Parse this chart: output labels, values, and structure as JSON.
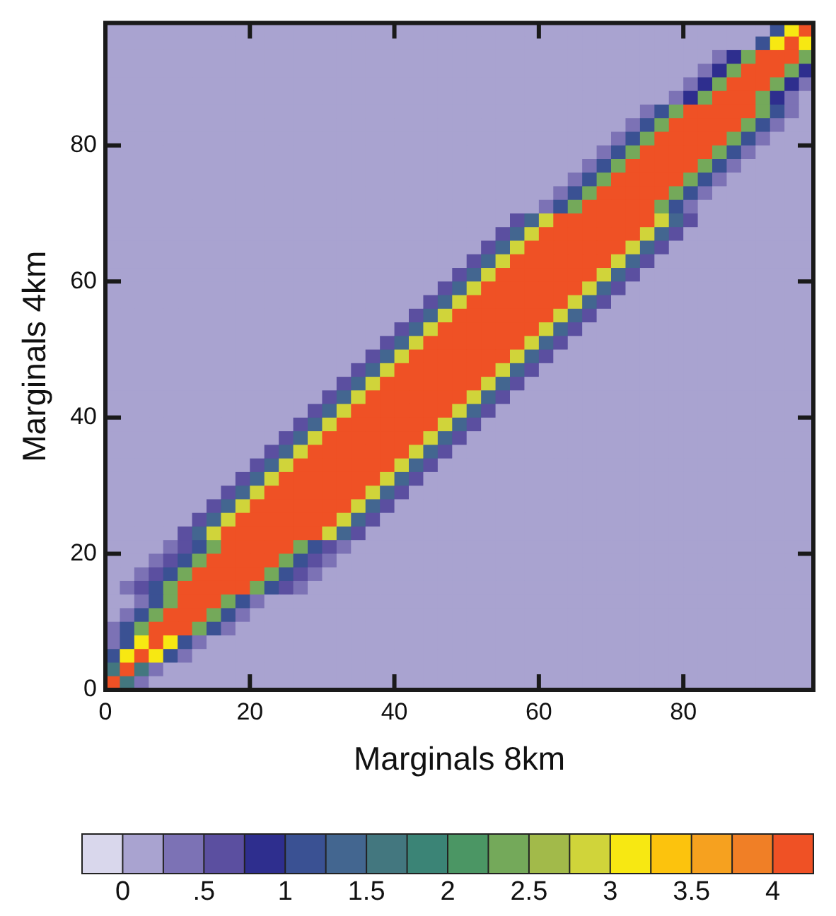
{
  "chart_data": {
    "type": "heatmap",
    "xlabel": "Marginals 8km",
    "ylabel": "Marginals 4km",
    "x": [
      1,
      3,
      5,
      7,
      9,
      11,
      13,
      15,
      17,
      19,
      21,
      23,
      25,
      27,
      29,
      31,
      33,
      35,
      37,
      39,
      41,
      43,
      45,
      47,
      49,
      51,
      53,
      55,
      57,
      59,
      61,
      63,
      65,
      67,
      69,
      71,
      73,
      75,
      77,
      79,
      81,
      83,
      85,
      87,
      89,
      91,
      93,
      95,
      97
    ],
    "y": [
      97,
      95,
      93,
      91,
      89,
      87,
      85,
      83,
      81,
      79,
      77,
      75,
      73,
      71,
      69,
      67,
      65,
      63,
      61,
      59,
      57,
      55,
      53,
      51,
      49,
      47,
      45,
      43,
      41,
      39,
      37,
      35,
      33,
      31,
      29,
      27,
      25,
      23,
      21,
      19,
      17,
      15,
      13,
      11,
      9,
      7,
      5,
      3,
      1
    ],
    "xlim": [
      0,
      98
    ],
    "ylim": [
      0,
      98
    ],
    "xticks": [
      0,
      20,
      40,
      60,
      80
    ],
    "yticks": [
      0,
      20,
      40,
      60,
      80
    ],
    "clim": [
      -0.25,
      4.25
    ],
    "cticks": [
      0,
      {
        "value": 0.5,
        "label": ".5"
      },
      1,
      1.5,
      2,
      2.5,
      3,
      3.5,
      4
    ],
    "colors": [
      "#d9d7ec",
      "#a9a3d0",
      "#7c72b5",
      "#5b4fa0",
      "#2e2e8e",
      "#3a5193",
      "#436690",
      "#43777f",
      "#3b8476",
      "#4b9664",
      "#74a95a",
      "#a2ba4a",
      "#d0d43a",
      "#f7e812",
      "#fcc30d",
      "#f6a11f",
      "#f07f26",
      "#ef5125"
    ],
    "cells": [
      [
        0.1,
        0.1,
        0.1,
        0.1,
        0.1,
        0.1,
        0.1,
        0.1,
        0.1,
        0.1,
        0.1,
        0.1,
        0.1,
        0.1,
        0.1,
        0.1,
        0.1,
        0.1,
        0.1,
        0.1,
        0.1,
        0.1,
        0.1,
        0.1,
        0.1,
        0.1,
        0.1,
        0.1,
        0.1,
        0.1,
        0.1,
        0.1,
        0.1,
        0.1,
        0.1,
        0.1,
        0.1,
        0.1,
        0.1,
        0.1,
        0.1,
        0.1,
        0.1,
        0.1,
        0.1,
        0.1,
        1.1,
        3.1,
        4.2
      ],
      [
        0.1,
        0.1,
        0.1,
        0.1,
        0.1,
        0.1,
        0.1,
        0.1,
        0.1,
        0.1,
        0.1,
        0.1,
        0.1,
        0.1,
        0.1,
        0.1,
        0.1,
        0.1,
        0.1,
        0.1,
        0.1,
        0.1,
        0.1,
        0.1,
        0.1,
        0.1,
        0.1,
        0.1,
        0.1,
        0.1,
        0.1,
        0.1,
        0.1,
        0.1,
        0.1,
        0.1,
        0.1,
        0.1,
        0.1,
        0.1,
        0.1,
        0.1,
        0.1,
        0.1,
        0.1,
        1.1,
        3.1,
        4.2,
        3.1
      ],
      [
        0.1,
        0.1,
        0.1,
        0.1,
        0.1,
        0.1,
        0.1,
        0.1,
        0.1,
        0.1,
        0.1,
        0.1,
        0.1,
        0.1,
        0.1,
        0.1,
        0.1,
        0.1,
        0.1,
        0.1,
        0.1,
        0.1,
        0.1,
        0.1,
        0.1,
        0.1,
        0.1,
        0.1,
        0.1,
        0.1,
        0.1,
        0.1,
        0.1,
        0.1,
        0.1,
        0.1,
        0.1,
        0.1,
        0.1,
        0.1,
        0.1,
        0.1,
        0.4,
        0.9,
        2.4,
        4.2,
        4.2,
        4.2,
        2.4
      ],
      [
        0.1,
        0.1,
        0.1,
        0.1,
        0.1,
        0.1,
        0.1,
        0.1,
        0.1,
        0.1,
        0.1,
        0.1,
        0.1,
        0.1,
        0.1,
        0.1,
        0.1,
        0.1,
        0.1,
        0.1,
        0.1,
        0.1,
        0.1,
        0.1,
        0.1,
        0.1,
        0.1,
        0.1,
        0.1,
        0.1,
        0.1,
        0.1,
        0.1,
        0.1,
        0.1,
        0.1,
        0.1,
        0.1,
        0.1,
        0.1,
        0.1,
        0.4,
        0.9,
        2.4,
        4.2,
        4.2,
        4.2,
        2.4,
        0.9
      ],
      [
        0.1,
        0.1,
        0.1,
        0.1,
        0.1,
        0.1,
        0.1,
        0.1,
        0.1,
        0.1,
        0.1,
        0.1,
        0.1,
        0.1,
        0.1,
        0.1,
        0.1,
        0.1,
        0.1,
        0.1,
        0.1,
        0.1,
        0.1,
        0.1,
        0.1,
        0.1,
        0.1,
        0.1,
        0.1,
        0.1,
        0.1,
        0.1,
        0.1,
        0.1,
        0.1,
        0.1,
        0.1,
        0.1,
        0.1,
        0.1,
        0.4,
        0.9,
        2.4,
        4.2,
        4.2,
        4.2,
        2.4,
        0.9,
        0.4
      ],
      [
        0.1,
        0.1,
        0.1,
        0.1,
        0.1,
        0.1,
        0.1,
        0.1,
        0.1,
        0.1,
        0.1,
        0.1,
        0.1,
        0.1,
        0.1,
        0.1,
        0.1,
        0.1,
        0.1,
        0.1,
        0.1,
        0.1,
        0.1,
        0.1,
        0.1,
        0.1,
        0.1,
        0.1,
        0.1,
        0.1,
        0.1,
        0.1,
        0.1,
        0.1,
        0.1,
        0.1,
        0.1,
        0.1,
        0.1,
        0.4,
        0.9,
        2.4,
        4.2,
        4.2,
        4.2,
        2.4,
        0.9,
        0.4,
        0.1
      ],
      [
        0.1,
        0.1,
        0.1,
        0.1,
        0.1,
        0.1,
        0.1,
        0.1,
        0.1,
        0.1,
        0.1,
        0.1,
        0.1,
        0.1,
        0.1,
        0.1,
        0.1,
        0.1,
        0.1,
        0.1,
        0.1,
        0.1,
        0.1,
        0.1,
        0.1,
        0.1,
        0.1,
        0.1,
        0.1,
        0.1,
        0.1,
        0.1,
        0.1,
        0.1,
        0.1,
        0.1,
        0.1,
        0.4,
        1.1,
        2.4,
        4.2,
        4.2,
        4.2,
        4.2,
        4.2,
        2.4,
        1.1,
        0.4,
        0.1
      ],
      [
        0.1,
        0.1,
        0.1,
        0.1,
        0.1,
        0.1,
        0.1,
        0.1,
        0.1,
        0.1,
        0.1,
        0.1,
        0.1,
        0.1,
        0.1,
        0.1,
        0.1,
        0.1,
        0.1,
        0.1,
        0.1,
        0.1,
        0.1,
        0.1,
        0.1,
        0.1,
        0.1,
        0.1,
        0.1,
        0.1,
        0.1,
        0.1,
        0.1,
        0.1,
        0.1,
        0.1,
        0.4,
        1.1,
        2.4,
        4.2,
        4.2,
        4.2,
        4.2,
        4.2,
        2.4,
        1.1,
        0.4,
        0.1,
        0.1
      ],
      [
        0.1,
        0.1,
        0.1,
        0.1,
        0.1,
        0.1,
        0.1,
        0.1,
        0.1,
        0.1,
        0.1,
        0.1,
        0.1,
        0.1,
        0.1,
        0.1,
        0.1,
        0.1,
        0.1,
        0.1,
        0.1,
        0.1,
        0.1,
        0.1,
        0.1,
        0.1,
        0.1,
        0.1,
        0.1,
        0.1,
        0.1,
        0.1,
        0.1,
        0.1,
        0.1,
        0.4,
        1.1,
        2.4,
        4.2,
        4.2,
        4.2,
        4.2,
        4.2,
        2.4,
        1.1,
        0.4,
        0.1,
        0.1,
        0.1
      ],
      [
        0.1,
        0.1,
        0.1,
        0.1,
        0.1,
        0.1,
        0.1,
        0.1,
        0.1,
        0.1,
        0.1,
        0.1,
        0.1,
        0.1,
        0.1,
        0.1,
        0.1,
        0.1,
        0.1,
        0.1,
        0.1,
        0.1,
        0.1,
        0.1,
        0.1,
        0.1,
        0.1,
        0.1,
        0.1,
        0.1,
        0.1,
        0.1,
        0.1,
        0.1,
        0.4,
        1.1,
        2.4,
        4.2,
        4.2,
        4.2,
        4.2,
        4.2,
        2.4,
        1.1,
        0.4,
        0.1,
        0.1,
        0.1,
        0.1
      ],
      [
        0.1,
        0.1,
        0.1,
        0.1,
        0.1,
        0.1,
        0.1,
        0.1,
        0.1,
        0.1,
        0.1,
        0.1,
        0.1,
        0.1,
        0.1,
        0.1,
        0.1,
        0.1,
        0.1,
        0.1,
        0.1,
        0.1,
        0.1,
        0.1,
        0.1,
        0.1,
        0.1,
        0.1,
        0.1,
        0.1,
        0.1,
        0.1,
        0.1,
        0.4,
        1.1,
        2.4,
        4.2,
        4.2,
        4.2,
        4.2,
        4.2,
        2.4,
        1.1,
        0.4,
        0.1,
        0.1,
        0.1,
        0.1,
        0.1
      ],
      [
        0.1,
        0.1,
        0.1,
        0.1,
        0.1,
        0.1,
        0.1,
        0.1,
        0.1,
        0.1,
        0.1,
        0.1,
        0.1,
        0.1,
        0.1,
        0.1,
        0.1,
        0.1,
        0.1,
        0.1,
        0.1,
        0.1,
        0.1,
        0.1,
        0.1,
        0.1,
        0.1,
        0.1,
        0.1,
        0.1,
        0.1,
        0.1,
        0.4,
        1.1,
        2.4,
        4.2,
        4.2,
        4.2,
        4.2,
        4.2,
        2.4,
        1.1,
        0.4,
        0.1,
        0.1,
        0.1,
        0.1,
        0.1,
        0.1
      ],
      [
        0.1,
        0.1,
        0.1,
        0.1,
        0.1,
        0.1,
        0.1,
        0.1,
        0.1,
        0.1,
        0.1,
        0.1,
        0.1,
        0.1,
        0.1,
        0.1,
        0.1,
        0.1,
        0.1,
        0.1,
        0.1,
        0.1,
        0.1,
        0.1,
        0.1,
        0.1,
        0.1,
        0.1,
        0.1,
        0.1,
        0.1,
        0.4,
        1.1,
        2.4,
        4.2,
        4.2,
        4.2,
        4.2,
        4.2,
        2.4,
        1.1,
        0.4,
        0.1,
        0.1,
        0.1,
        0.1,
        0.1,
        0.1,
        0.1
      ],
      [
        0.1,
        0.1,
        0.1,
        0.1,
        0.1,
        0.1,
        0.1,
        0.1,
        0.1,
        0.1,
        0.1,
        0.1,
        0.1,
        0.1,
        0.1,
        0.1,
        0.1,
        0.1,
        0.1,
        0.1,
        0.1,
        0.1,
        0.1,
        0.1,
        0.1,
        0.1,
        0.1,
        0.1,
        0.1,
        0.1,
        0.4,
        1.1,
        2.4,
        4.2,
        4.2,
        4.2,
        4.2,
        4.2,
        2.4,
        1.1,
        0.4,
        0.1,
        0.1,
        0.1,
        0.1,
        0.1,
        0.1,
        0.1,
        0.1
      ],
      [
        0.1,
        0.1,
        0.1,
        0.1,
        0.1,
        0.1,
        0.1,
        0.1,
        0.1,
        0.1,
        0.1,
        0.1,
        0.1,
        0.1,
        0.1,
        0.1,
        0.1,
        0.1,
        0.1,
        0.1,
        0.1,
        0.1,
        0.1,
        0.1,
        0.1,
        0.1,
        0.1,
        0.1,
        0.6,
        1.4,
        2.9,
        4.2,
        4.2,
        4.2,
        4.2,
        4.2,
        4.2,
        4.2,
        2.9,
        1.4,
        0.6,
        0.1,
        0.1,
        0.1,
        0.1,
        0.1,
        0.1,
        0.1,
        0.1
      ],
      [
        0.1,
        0.1,
        0.1,
        0.1,
        0.1,
        0.1,
        0.1,
        0.1,
        0.1,
        0.1,
        0.1,
        0.1,
        0.1,
        0.1,
        0.1,
        0.1,
        0.1,
        0.1,
        0.1,
        0.1,
        0.1,
        0.1,
        0.1,
        0.1,
        0.1,
        0.1,
        0.1,
        0.6,
        1.4,
        2.9,
        4.2,
        4.2,
        4.2,
        4.2,
        4.2,
        4.2,
        4.2,
        2.9,
        1.4,
        0.6,
        0.1,
        0.1,
        0.1,
        0.1,
        0.1,
        0.1,
        0.1,
        0.1,
        0.1
      ],
      [
        0.1,
        0.1,
        0.1,
        0.1,
        0.1,
        0.1,
        0.1,
        0.1,
        0.1,
        0.1,
        0.1,
        0.1,
        0.1,
        0.1,
        0.1,
        0.1,
        0.1,
        0.1,
        0.1,
        0.1,
        0.1,
        0.1,
        0.1,
        0.1,
        0.1,
        0.1,
        0.6,
        1.4,
        2.9,
        4.2,
        4.2,
        4.2,
        4.2,
        4.2,
        4.2,
        4.2,
        2.9,
        1.4,
        0.6,
        0.1,
        0.1,
        0.1,
        0.1,
        0.1,
        0.1,
        0.1,
        0.1,
        0.1,
        0.1
      ],
      [
        0.1,
        0.1,
        0.1,
        0.1,
        0.1,
        0.1,
        0.1,
        0.1,
        0.1,
        0.1,
        0.1,
        0.1,
        0.1,
        0.1,
        0.1,
        0.1,
        0.1,
        0.1,
        0.1,
        0.1,
        0.1,
        0.1,
        0.1,
        0.1,
        0.1,
        0.6,
        1.4,
        2.9,
        4.2,
        4.2,
        4.2,
        4.2,
        4.2,
        4.2,
        4.2,
        2.9,
        1.4,
        0.6,
        0.1,
        0.1,
        0.1,
        0.1,
        0.1,
        0.1,
        0.1,
        0.1,
        0.1,
        0.1,
        0.1
      ],
      [
        0.1,
        0.1,
        0.1,
        0.1,
        0.1,
        0.1,
        0.1,
        0.1,
        0.1,
        0.1,
        0.1,
        0.1,
        0.1,
        0.1,
        0.1,
        0.1,
        0.1,
        0.1,
        0.1,
        0.1,
        0.1,
        0.1,
        0.1,
        0.1,
        0.6,
        1.4,
        2.9,
        4.2,
        4.2,
        4.2,
        4.2,
        4.2,
        4.2,
        4.2,
        2.9,
        1.4,
        0.6,
        0.1,
        0.1,
        0.1,
        0.1,
        0.1,
        0.1,
        0.1,
        0.1,
        0.1,
        0.1,
        0.1,
        0.1
      ],
      [
        0.1,
        0.1,
        0.1,
        0.1,
        0.1,
        0.1,
        0.1,
        0.1,
        0.1,
        0.1,
        0.1,
        0.1,
        0.1,
        0.1,
        0.1,
        0.1,
        0.1,
        0.1,
        0.1,
        0.1,
        0.1,
        0.1,
        0.1,
        0.6,
        1.4,
        2.9,
        4.2,
        4.2,
        4.2,
        4.2,
        4.2,
        4.2,
        4.2,
        2.9,
        1.4,
        0.6,
        0.1,
        0.1,
        0.1,
        0.1,
        0.1,
        0.1,
        0.1,
        0.1,
        0.1,
        0.1,
        0.1,
        0.1,
        0.1
      ],
      [
        0.1,
        0.1,
        0.1,
        0.1,
        0.1,
        0.1,
        0.1,
        0.1,
        0.1,
        0.1,
        0.1,
        0.1,
        0.1,
        0.1,
        0.1,
        0.1,
        0.1,
        0.1,
        0.1,
        0.1,
        0.1,
        0.1,
        0.6,
        1.4,
        2.9,
        4.2,
        4.2,
        4.2,
        4.2,
        4.2,
        4.2,
        4.2,
        2.9,
        1.4,
        0.6,
        0.1,
        0.1,
        0.1,
        0.1,
        0.1,
        0.1,
        0.1,
        0.1,
        0.1,
        0.1,
        0.1,
        0.1,
        0.1,
        0.1
      ],
      [
        0.1,
        0.1,
        0.1,
        0.1,
        0.1,
        0.1,
        0.1,
        0.1,
        0.1,
        0.1,
        0.1,
        0.1,
        0.1,
        0.1,
        0.1,
        0.1,
        0.1,
        0.1,
        0.1,
        0.1,
        0.1,
        0.6,
        1.4,
        2.9,
        4.2,
        4.2,
        4.2,
        4.2,
        4.2,
        4.2,
        4.2,
        2.9,
        1.4,
        0.6,
        0.1,
        0.1,
        0.1,
        0.1,
        0.1,
        0.1,
        0.1,
        0.1,
        0.1,
        0.1,
        0.1,
        0.1,
        0.1,
        0.1,
        0.1
      ],
      [
        0.1,
        0.1,
        0.1,
        0.1,
        0.1,
        0.1,
        0.1,
        0.1,
        0.1,
        0.1,
        0.1,
        0.1,
        0.1,
        0.1,
        0.1,
        0.1,
        0.1,
        0.1,
        0.1,
        0.1,
        0.6,
        1.4,
        2.9,
        4.2,
        4.2,
        4.2,
        4.2,
        4.2,
        4.2,
        4.2,
        2.9,
        1.4,
        0.6,
        0.1,
        0.1,
        0.1,
        0.1,
        0.1,
        0.1,
        0.1,
        0.1,
        0.1,
        0.1,
        0.1,
        0.1,
        0.1,
        0.1,
        0.1,
        0.1
      ],
      [
        0.1,
        0.1,
        0.1,
        0.1,
        0.1,
        0.1,
        0.1,
        0.1,
        0.1,
        0.1,
        0.1,
        0.1,
        0.1,
        0.1,
        0.1,
        0.1,
        0.1,
        0.1,
        0.1,
        0.6,
        1.4,
        2.9,
        4.2,
        4.2,
        4.2,
        4.2,
        4.2,
        4.2,
        4.2,
        2.9,
        1.4,
        0.6,
        0.1,
        0.1,
        0.1,
        0.1,
        0.1,
        0.1,
        0.1,
        0.1,
        0.1,
        0.1,
        0.1,
        0.1,
        0.1,
        0.1,
        0.1,
        0.1,
        0.1
      ],
      [
        0.1,
        0.1,
        0.1,
        0.1,
        0.1,
        0.1,
        0.1,
        0.1,
        0.1,
        0.1,
        0.1,
        0.1,
        0.1,
        0.1,
        0.1,
        0.1,
        0.1,
        0.1,
        0.6,
        1.4,
        2.9,
        4.2,
        4.2,
        4.2,
        4.2,
        4.2,
        4.2,
        4.2,
        2.9,
        1.4,
        0.6,
        0.1,
        0.1,
        0.1,
        0.1,
        0.1,
        0.1,
        0.1,
        0.1,
        0.1,
        0.1,
        0.1,
        0.1,
        0.1,
        0.1,
        0.1,
        0.1,
        0.1,
        0.1
      ],
      [
        0.1,
        0.1,
        0.1,
        0.1,
        0.1,
        0.1,
        0.1,
        0.1,
        0.1,
        0.1,
        0.1,
        0.1,
        0.1,
        0.1,
        0.1,
        0.1,
        0.1,
        0.6,
        1.4,
        2.9,
        4.2,
        4.2,
        4.2,
        4.2,
        4.2,
        4.2,
        4.2,
        2.9,
        1.4,
        0.6,
        0.1,
        0.1,
        0.1,
        0.1,
        0.1,
        0.1,
        0.1,
        0.1,
        0.1,
        0.1,
        0.1,
        0.1,
        0.1,
        0.1,
        0.1,
        0.1,
        0.1,
        0.1,
        0.1
      ],
      [
        0.1,
        0.1,
        0.1,
        0.1,
        0.1,
        0.1,
        0.1,
        0.1,
        0.1,
        0.1,
        0.1,
        0.1,
        0.1,
        0.1,
        0.1,
        0.1,
        0.6,
        1.4,
        2.9,
        4.2,
        4.2,
        4.2,
        4.2,
        4.2,
        4.2,
        4.2,
        2.9,
        1.4,
        0.6,
        0.1,
        0.1,
        0.1,
        0.1,
        0.1,
        0.1,
        0.1,
        0.1,
        0.1,
        0.1,
        0.1,
        0.1,
        0.1,
        0.1,
        0.1,
        0.1,
        0.1,
        0.1,
        0.1,
        0.1
      ],
      [
        0.1,
        0.1,
        0.1,
        0.1,
        0.1,
        0.1,
        0.1,
        0.1,
        0.1,
        0.1,
        0.1,
        0.1,
        0.1,
        0.1,
        0.1,
        0.6,
        1.4,
        2.9,
        4.2,
        4.2,
        4.2,
        4.2,
        4.2,
        4.2,
        4.2,
        2.9,
        1.4,
        0.6,
        0.1,
        0.1,
        0.1,
        0.1,
        0.1,
        0.1,
        0.1,
        0.1,
        0.1,
        0.1,
        0.1,
        0.1,
        0.1,
        0.1,
        0.1,
        0.1,
        0.1,
        0.1,
        0.1,
        0.1,
        0.1
      ],
      [
        0.1,
        0.1,
        0.1,
        0.1,
        0.1,
        0.1,
        0.1,
        0.1,
        0.1,
        0.1,
        0.1,
        0.1,
        0.1,
        0.1,
        0.6,
        1.4,
        2.9,
        4.2,
        4.2,
        4.2,
        4.2,
        4.2,
        4.2,
        4.2,
        2.9,
        1.4,
        0.6,
        0.1,
        0.1,
        0.1,
        0.1,
        0.1,
        0.1,
        0.1,
        0.1,
        0.1,
        0.1,
        0.1,
        0.1,
        0.1,
        0.1,
        0.1,
        0.1,
        0.1,
        0.1,
        0.1,
        0.1,
        0.1,
        0.1
      ],
      [
        0.1,
        0.1,
        0.1,
        0.1,
        0.1,
        0.1,
        0.1,
        0.1,
        0.1,
        0.1,
        0.1,
        0.1,
        0.1,
        0.6,
        1.4,
        2.9,
        4.2,
        4.2,
        4.2,
        4.2,
        4.2,
        4.2,
        4.2,
        2.9,
        1.4,
        0.6,
        0.1,
        0.1,
        0.1,
        0.1,
        0.1,
        0.1,
        0.1,
        0.1,
        0.1,
        0.1,
        0.1,
        0.1,
        0.1,
        0.1,
        0.1,
        0.1,
        0.1,
        0.1,
        0.1,
        0.1,
        0.1,
        0.1,
        0.1
      ],
      [
        0.1,
        0.1,
        0.1,
        0.1,
        0.1,
        0.1,
        0.1,
        0.1,
        0.1,
        0.1,
        0.1,
        0.1,
        0.6,
        1.4,
        2.9,
        4.2,
        4.2,
        4.2,
        4.2,
        4.2,
        4.2,
        4.2,
        2.9,
        1.4,
        0.6,
        0.1,
        0.1,
        0.1,
        0.1,
        0.1,
        0.1,
        0.1,
        0.1,
        0.1,
        0.1,
        0.1,
        0.1,
        0.1,
        0.1,
        0.1,
        0.1,
        0.1,
        0.1,
        0.1,
        0.1,
        0.1,
        0.1,
        0.1,
        0.1
      ],
      [
        0.1,
        0.1,
        0.1,
        0.1,
        0.1,
        0.1,
        0.1,
        0.1,
        0.1,
        0.1,
        0.1,
        0.6,
        1.4,
        2.9,
        4.2,
        4.2,
        4.2,
        4.2,
        4.2,
        4.2,
        4.2,
        2.9,
        1.4,
        0.6,
        0.1,
        0.1,
        0.1,
        0.1,
        0.1,
        0.1,
        0.1,
        0.1,
        0.1,
        0.1,
        0.1,
        0.1,
        0.1,
        0.1,
        0.1,
        0.1,
        0.1,
        0.1,
        0.1,
        0.1,
        0.1,
        0.1,
        0.1,
        0.1,
        0.1
      ],
      [
        0.1,
        0.1,
        0.1,
        0.1,
        0.1,
        0.1,
        0.1,
        0.1,
        0.1,
        0.1,
        0.6,
        1.4,
        2.9,
        4.2,
        4.2,
        4.2,
        4.2,
        4.2,
        4.2,
        4.2,
        2.9,
        1.4,
        0.6,
        0.1,
        0.1,
        0.1,
        0.1,
        0.1,
        0.1,
        0.1,
        0.1,
        0.1,
        0.1,
        0.1,
        0.1,
        0.1,
        0.1,
        0.1,
        0.1,
        0.1,
        0.1,
        0.1,
        0.1,
        0.1,
        0.1,
        0.1,
        0.1,
        0.1,
        0.1
      ],
      [
        0.1,
        0.1,
        0.1,
        0.1,
        0.1,
        0.1,
        0.1,
        0.1,
        0.1,
        0.6,
        1.4,
        2.9,
        4.2,
        4.2,
        4.2,
        4.2,
        4.2,
        4.2,
        4.2,
        2.9,
        1.4,
        0.6,
        0.1,
        0.1,
        0.1,
        0.1,
        0.1,
        0.1,
        0.1,
        0.1,
        0.1,
        0.1,
        0.1,
        0.1,
        0.1,
        0.1,
        0.1,
        0.1,
        0.1,
        0.1,
        0.1,
        0.1,
        0.1,
        0.1,
        0.1,
        0.1,
        0.1,
        0.1,
        0.1
      ],
      [
        0.1,
        0.1,
        0.1,
        0.1,
        0.1,
        0.1,
        0.1,
        0.1,
        0.6,
        1.4,
        2.9,
        4.2,
        4.2,
        4.2,
        4.2,
        4.2,
        4.2,
        4.2,
        2.9,
        1.4,
        0.6,
        0.1,
        0.1,
        0.1,
        0.1,
        0.1,
        0.1,
        0.1,
        0.1,
        0.1,
        0.1,
        0.1,
        0.1,
        0.1,
        0.1,
        0.1,
        0.1,
        0.1,
        0.1,
        0.1,
        0.1,
        0.1,
        0.1,
        0.1,
        0.1,
        0.1,
        0.1,
        0.1,
        0.1
      ],
      [
        0.1,
        0.1,
        0.1,
        0.1,
        0.1,
        0.1,
        0.1,
        0.6,
        1.4,
        2.9,
        4.2,
        4.2,
        4.2,
        4.2,
        4.2,
        4.2,
        4.2,
        2.9,
        1.4,
        0.6,
        0.1,
        0.1,
        0.1,
        0.1,
        0.1,
        0.1,
        0.1,
        0.1,
        0.1,
        0.1,
        0.1,
        0.1,
        0.1,
        0.1,
        0.1,
        0.1,
        0.1,
        0.1,
        0.1,
        0.1,
        0.1,
        0.1,
        0.1,
        0.1,
        0.1,
        0.1,
        0.1,
        0.1,
        0.1
      ],
      [
        0.1,
        0.1,
        0.1,
        0.1,
        0.1,
        0.1,
        0.6,
        1.4,
        2.9,
        4.2,
        4.2,
        4.2,
        4.2,
        4.2,
        4.2,
        4.2,
        2.9,
        1.4,
        0.6,
        0.1,
        0.1,
        0.1,
        0.1,
        0.1,
        0.1,
        0.1,
        0.1,
        0.1,
        0.1,
        0.1,
        0.1,
        0.1,
        0.1,
        0.1,
        0.1,
        0.1,
        0.1,
        0.1,
        0.1,
        0.1,
        0.1,
        0.1,
        0.1,
        0.1,
        0.1,
        0.1,
        0.1,
        0.1,
        0.1
      ],
      [
        0.1,
        0.1,
        0.1,
        0.1,
        0.1,
        0.6,
        1.4,
        2.9,
        4.2,
        4.2,
        4.2,
        4.2,
        4.2,
        4.2,
        4.2,
        2.9,
        1.4,
        0.6,
        0.1,
        0.1,
        0.1,
        0.1,
        0.1,
        0.1,
        0.1,
        0.1,
        0.1,
        0.1,
        0.1,
        0.1,
        0.1,
        0.1,
        0.1,
        0.1,
        0.1,
        0.1,
        0.1,
        0.1,
        0.1,
        0.1,
        0.1,
        0.1,
        0.1,
        0.1,
        0.1,
        0.1,
        0.1,
        0.1,
        0.1
      ],
      [
        0.1,
        0.1,
        0.1,
        0.1,
        0.4,
        0.6,
        1.1,
        2.4,
        4.2,
        4.2,
        4.2,
        4.2,
        4.2,
        2.4,
        1.1,
        0.6,
        0.4,
        0.1,
        0.1,
        0.1,
        0.1,
        0.1,
        0.1,
        0.1,
        0.1,
        0.1,
        0.1,
        0.1,
        0.1,
        0.1,
        0.1,
        0.1,
        0.1,
        0.1,
        0.1,
        0.1,
        0.1,
        0.1,
        0.1,
        0.1,
        0.1,
        0.1,
        0.1,
        0.1,
        0.1,
        0.1,
        0.1,
        0.1,
        0.1
      ],
      [
        0.1,
        0.1,
        0.1,
        0.4,
        0.6,
        1.1,
        2.4,
        4.2,
        4.2,
        4.2,
        4.2,
        4.2,
        2.4,
        1.1,
        0.6,
        0.4,
        0.1,
        0.1,
        0.1,
        0.1,
        0.1,
        0.1,
        0.1,
        0.1,
        0.1,
        0.1,
        0.1,
        0.1,
        0.1,
        0.1,
        0.1,
        0.1,
        0.1,
        0.1,
        0.1,
        0.1,
        0.1,
        0.1,
        0.1,
        0.1,
        0.1,
        0.1,
        0.1,
        0.1,
        0.1,
        0.1,
        0.1,
        0.1,
        0.1
      ],
      [
        0.1,
        0.1,
        0.4,
        0.6,
        1.1,
        2.4,
        4.2,
        4.2,
        4.2,
        4.2,
        4.2,
        2.4,
        1.1,
        0.6,
        0.4,
        0.1,
        0.1,
        0.1,
        0.1,
        0.1,
        0.1,
        0.1,
        0.1,
        0.1,
        0.1,
        0.1,
        0.1,
        0.1,
        0.1,
        0.1,
        0.1,
        0.1,
        0.1,
        0.1,
        0.1,
        0.1,
        0.1,
        0.1,
        0.1,
        0.1,
        0.1,
        0.1,
        0.1,
        0.1,
        0.1,
        0.1,
        0.1,
        0.1,
        0.1
      ],
      [
        0.1,
        0.4,
        0.6,
        1.1,
        2.4,
        4.2,
        4.2,
        4.2,
        4.2,
        4.2,
        2.4,
        1.1,
        0.6,
        0.4,
        0.1,
        0.1,
        0.1,
        0.1,
        0.1,
        0.1,
        0.1,
        0.1,
        0.1,
        0.1,
        0.1,
        0.1,
        0.1,
        0.1,
        0.1,
        0.1,
        0.1,
        0.1,
        0.1,
        0.1,
        0.1,
        0.1,
        0.1,
        0.1,
        0.1,
        0.1,
        0.1,
        0.1,
        0.1,
        0.1,
        0.1,
        0.1,
        0.1,
        0.1,
        0.1
      ],
      [
        0.1,
        0.1,
        0.4,
        1.1,
        2.4,
        4.2,
        4.2,
        4.2,
        2.4,
        1.1,
        0.4,
        0.1,
        0.1,
        0.1,
        0.1,
        0.1,
        0.1,
        0.1,
        0.1,
        0.1,
        0.1,
        0.1,
        0.1,
        0.1,
        0.1,
        0.1,
        0.1,
        0.1,
        0.1,
        0.1,
        0.1,
        0.1,
        0.1,
        0.1,
        0.1,
        0.1,
        0.1,
        0.1,
        0.1,
        0.1,
        0.1,
        0.1,
        0.1,
        0.1,
        0.1,
        0.1,
        0.1,
        0.1,
        0.1
      ],
      [
        0.1,
        0.4,
        1.1,
        2.4,
        4.2,
        4.2,
        4.2,
        2.4,
        1.1,
        0.4,
        0.1,
        0.1,
        0.1,
        0.1,
        0.1,
        0.1,
        0.1,
        0.1,
        0.1,
        0.1,
        0.1,
        0.1,
        0.1,
        0.1,
        0.1,
        0.1,
        0.1,
        0.1,
        0.1,
        0.1,
        0.1,
        0.1,
        0.1,
        0.1,
        0.1,
        0.1,
        0.1,
        0.1,
        0.1,
        0.1,
        0.1,
        0.1,
        0.1,
        0.1,
        0.1,
        0.1,
        0.1,
        0.1,
        0.1
      ],
      [
        0.4,
        1.1,
        2.4,
        4.2,
        4.2,
        4.2,
        2.4,
        1.1,
        0.4,
        0.1,
        0.1,
        0.1,
        0.1,
        0.1,
        0.1,
        0.1,
        0.1,
        0.1,
        0.1,
        0.1,
        0.1,
        0.1,
        0.1,
        0.1,
        0.1,
        0.1,
        0.1,
        0.1,
        0.1,
        0.1,
        0.1,
        0.1,
        0.1,
        0.1,
        0.1,
        0.1,
        0.1,
        0.1,
        0.1,
        0.1,
        0.1,
        0.1,
        0.1,
        0.1,
        0.1,
        0.1,
        0.1,
        0.1,
        0.1
      ],
      [
        0.4,
        1.1,
        3.1,
        4.2,
        3.1,
        1.1,
        0.4,
        0.1,
        0.1,
        0.1,
        0.1,
        0.1,
        0.1,
        0.1,
        0.1,
        0.1,
        0.1,
        0.1,
        0.1,
        0.1,
        0.1,
        0.1,
        0.1,
        0.1,
        0.1,
        0.1,
        0.1,
        0.1,
        0.1,
        0.1,
        0.1,
        0.1,
        0.1,
        0.1,
        0.1,
        0.1,
        0.1,
        0.1,
        0.1,
        0.1,
        0.1,
        0.1,
        0.1,
        0.1,
        0.1,
        0.1,
        0.1,
        0.1,
        0.1
      ],
      [
        1.1,
        3.1,
        4.2,
        3.1,
        1.1,
        0.4,
        0.1,
        0.1,
        0.1,
        0.1,
        0.1,
        0.1,
        0.1,
        0.1,
        0.1,
        0.1,
        0.1,
        0.1,
        0.1,
        0.1,
        0.1,
        0.1,
        0.1,
        0.1,
        0.1,
        0.1,
        0.1,
        0.1,
        0.1,
        0.1,
        0.1,
        0.1,
        0.1,
        0.1,
        0.1,
        0.1,
        0.1,
        0.1,
        0.1,
        0.1,
        0.1,
        0.1,
        0.1,
        0.1,
        0.1,
        0.1,
        0.1,
        0.1,
        0.1
      ],
      [
        1.6,
        4.2,
        1.6,
        0.4,
        0.1,
        0.1,
        0.1,
        0.1,
        0.1,
        0.1,
        0.1,
        0.1,
        0.1,
        0.1,
        0.1,
        0.1,
        0.1,
        0.1,
        0.1,
        0.1,
        0.1,
        0.1,
        0.1,
        0.1,
        0.1,
        0.1,
        0.1,
        0.1,
        0.1,
        0.1,
        0.1,
        0.1,
        0.1,
        0.1,
        0.1,
        0.1,
        0.1,
        0.1,
        0.1,
        0.1,
        0.1,
        0.1,
        0.1,
        0.1,
        0.1,
        0.1,
        0.1,
        0.1,
        0.1
      ],
      [
        4.2,
        1.6,
        0.4,
        0.1,
        0.1,
        0.1,
        0.1,
        0.1,
        0.1,
        0.1,
        0.1,
        0.1,
        0.1,
        0.1,
        0.1,
        0.1,
        0.1,
        0.1,
        0.1,
        0.1,
        0.1,
        0.1,
        0.1,
        0.1,
        0.1,
        0.1,
        0.1,
        0.1,
        0.1,
        0.1,
        0.1,
        0.1,
        0.1,
        0.1,
        0.1,
        0.1,
        0.1,
        0.1,
        0.1,
        0.1,
        0.1,
        0.1,
        0.1,
        0.1,
        0.1,
        0.1,
        0.1,
        0.1,
        0.1
      ]
    ]
  }
}
